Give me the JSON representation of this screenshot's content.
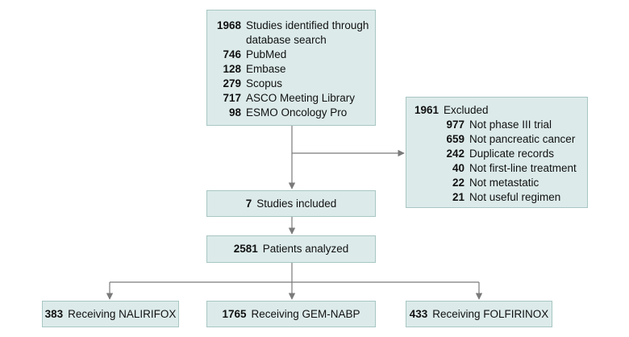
{
  "identified": {
    "count": "1968",
    "label_line1": "Studies identified through",
    "label_line2": "database search",
    "sources": [
      {
        "count": "746",
        "label": "PubMed"
      },
      {
        "count": "128",
        "label": "Embase"
      },
      {
        "count": "279",
        "label": "Scopus"
      },
      {
        "count": "717",
        "label": "ASCO Meeting Library"
      },
      {
        "count": "98",
        "label": "ESMO Oncology Pro"
      }
    ]
  },
  "excluded": {
    "count": "1961",
    "label": "Excluded",
    "reasons": [
      {
        "count": "977",
        "label": "Not phase III trial"
      },
      {
        "count": "659",
        "label": "Not pancreatic cancer"
      },
      {
        "count": "242",
        "label": "Duplicate records"
      },
      {
        "count": "40",
        "label": "Not first-line treatment"
      },
      {
        "count": "22",
        "label": "Not metastatic"
      },
      {
        "count": "21",
        "label": "Not useful regimen"
      }
    ]
  },
  "included": {
    "count": "7",
    "label": "Studies included"
  },
  "analyzed": {
    "count": "2581",
    "label": "Patients analyzed"
  },
  "arms": [
    {
      "count": "383",
      "label": "Receiving NALIRIFOX"
    },
    {
      "count": "1765",
      "label": "Receiving GEM-NABP"
    },
    {
      "count": "433",
      "label": "Receiving FOLFIRINOX"
    }
  ],
  "colors": {
    "box_fill": "#dcebea",
    "box_border": "#a7c6c3",
    "connector": "#7a7a7a"
  }
}
